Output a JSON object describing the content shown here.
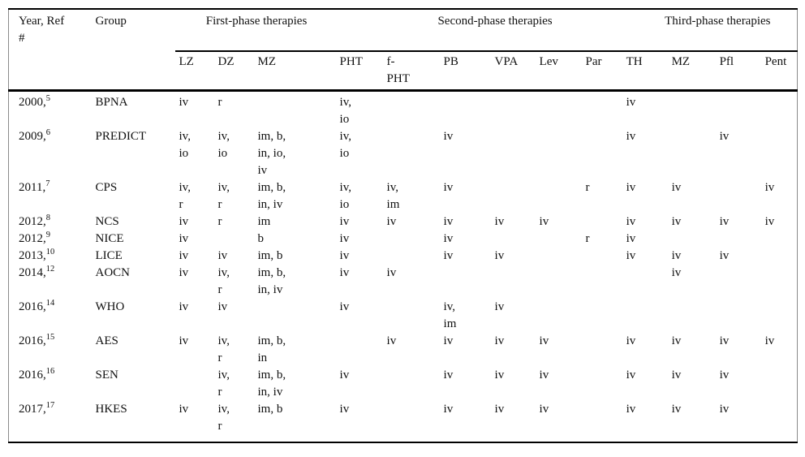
{
  "table": {
    "header": {
      "year_ref": "Year, Ref\n#",
      "group": "Group",
      "phase_groups": [
        {
          "label": "First-phase therapies",
          "span": "3"
        },
        {
          "label": "Second-phase therapies",
          "span": "6"
        },
        {
          "label": "Third-phase therapies",
          "span": "4"
        }
      ],
      "drug_columns": [
        "LZ",
        "DZ",
        "MZ",
        "PHT",
        "f-\nPHT",
        "PB",
        "VPA",
        "Lev",
        "Par",
        "TH",
        "MZ",
        "Pfl",
        "Pent"
      ]
    },
    "rows": [
      {
        "year": "2000,",
        "ref": "5",
        "group": "BPNA",
        "cells": [
          "iv",
          "r",
          "",
          "iv,\nio",
          "",
          "",
          "",
          "",
          "",
          "iv",
          "",
          "",
          ""
        ]
      },
      {
        "year": "2009,",
        "ref": "6",
        "group": "PREDICT",
        "cells": [
          "iv,\nio",
          "iv,\nio",
          "im, b,\nin, io,\niv",
          "iv,\nio",
          "",
          "iv",
          "",
          "",
          "",
          "iv",
          "",
          "iv",
          ""
        ]
      },
      {
        "year": "2011,",
        "ref": "7",
        "group": "CPS",
        "cells": [
          "iv,\nr",
          "iv,\nr",
          "im, b,\nin, iv",
          "iv,\nio",
          "iv,\nim",
          "iv",
          "",
          "",
          "r",
          "iv",
          "iv",
          "",
          "iv"
        ]
      },
      {
        "year": "2012,",
        "ref": "8",
        "group": "NCS",
        "cells": [
          "iv",
          "r",
          "im",
          "iv",
          "iv",
          "iv",
          "iv",
          "iv",
          "",
          "iv",
          "iv",
          "iv",
          "iv"
        ]
      },
      {
        "year": "2012,",
        "ref": "9",
        "group": "NICE",
        "cells": [
          "iv",
          "",
          "b",
          "iv",
          "",
          "iv",
          "",
          "",
          "r",
          "iv",
          "",
          "",
          ""
        ]
      },
      {
        "year": "2013,",
        "ref": "10",
        "group": "LICE",
        "cells": [
          "iv",
          "iv",
          "im, b",
          "iv",
          "",
          "iv",
          "iv",
          "",
          "",
          "iv",
          "iv",
          "iv",
          ""
        ]
      },
      {
        "year": "2014,",
        "ref": "12",
        "group": "AOCN",
        "cells": [
          "iv",
          "iv,\nr",
          "im, b,\nin, iv",
          "iv",
          "iv",
          "",
          "",
          "",
          "",
          "",
          "iv",
          "",
          ""
        ]
      },
      {
        "year": "2016,",
        "ref": "14",
        "group": "WHO",
        "cells": [
          "iv",
          "iv",
          "",
          "iv",
          "",
          "iv,\nim",
          "iv",
          "",
          "",
          "",
          "",
          "",
          ""
        ]
      },
      {
        "year": "2016,",
        "ref": "15",
        "group": "AES",
        "cells": [
          "iv",
          "iv,\nr",
          "im, b,\nin",
          "",
          "iv",
          "iv",
          "iv",
          "iv",
          "",
          "iv",
          "iv",
          "iv",
          "iv"
        ]
      },
      {
        "year": "2016,",
        "ref": "16",
        "group": "SEN",
        "cells": [
          "",
          "iv,\nr",
          "im, b,\nin, iv",
          "iv",
          "",
          "iv",
          "iv",
          "iv",
          "",
          "iv",
          "iv",
          "iv",
          ""
        ]
      },
      {
        "year": "2017,",
        "ref": "17",
        "group": "HKES",
        "cells": [
          "iv",
          "iv,\nr",
          "im, b",
          "iv",
          "",
          "iv",
          "iv",
          "iv",
          "",
          "iv",
          "iv",
          "iv",
          ""
        ]
      }
    ],
    "colors": {
      "rule": "#000000",
      "side_border": "#8a8a8a",
      "text": "#111111",
      "background": "#ffffff"
    }
  }
}
